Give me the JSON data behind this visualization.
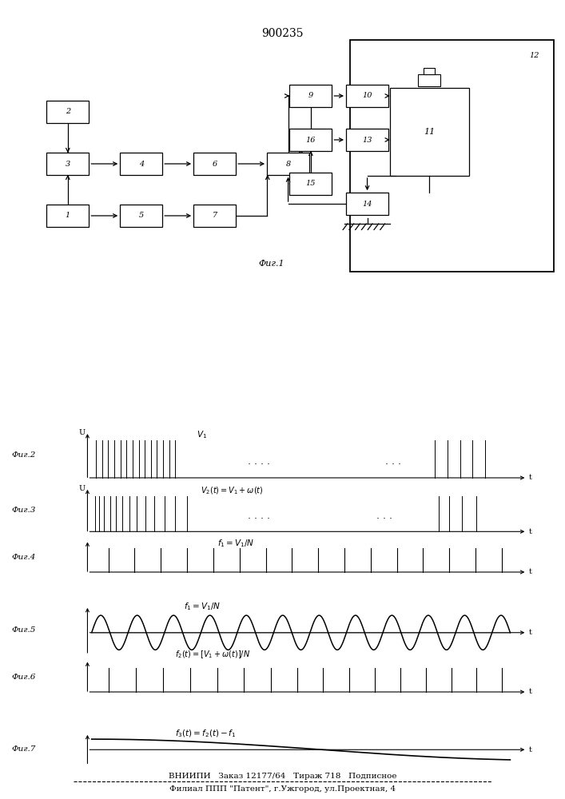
{
  "title": "900235",
  "fig1_label": "Фиг.1",
  "fig2_label": "Фиг.2",
  "fig3_label": "Фиг.3",
  "fig4_label": "Фиг.4",
  "fig5_label": "Фиг.5",
  "fig6_label": "Фиг.6",
  "fig7_label": "Фиг.7",
  "footer_line1": "ВНИИПИ   Заказ 12177/64   Тираж 718   Подписное",
  "footer_line2": "Филиал ППП \"Патент\", г.Ужгород, ул.Проектная, 4",
  "bg_color": "#ffffff",
  "line_color": "#000000"
}
